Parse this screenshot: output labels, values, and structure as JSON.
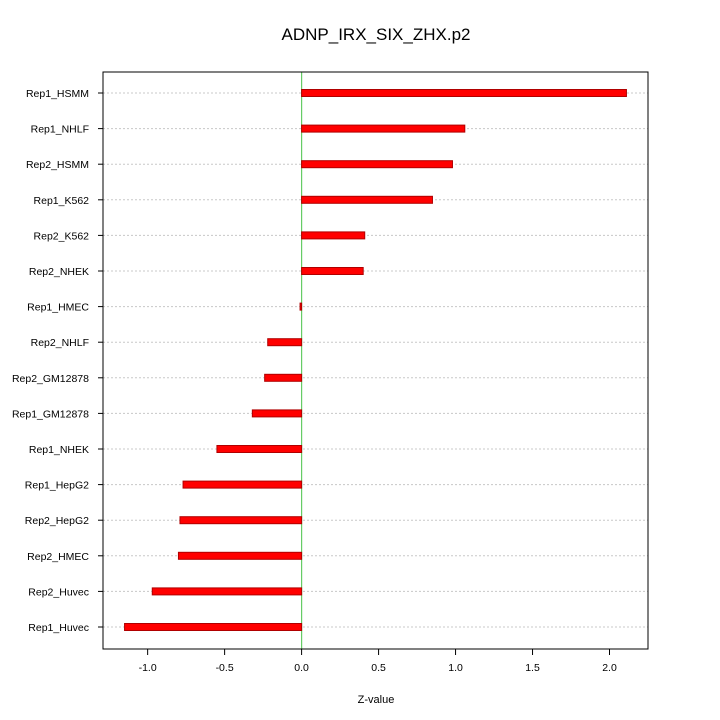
{
  "chart_data": {
    "type": "bar",
    "orientation": "horizontal",
    "title": "ADNP_IRX_SIX_ZHX.p2",
    "xlabel": "Z-value",
    "ylabel": "",
    "xlim": [
      -1.29,
      2.25
    ],
    "xticks": [
      -1.0,
      -0.5,
      0.0,
      0.5,
      1.0,
      1.5,
      2.0
    ],
    "xtick_labels": [
      "-1.0",
      "-0.5",
      "0.0",
      "0.5",
      "1.0",
      "1.5",
      "2.0"
    ],
    "grid": true,
    "zero_line": 0,
    "categories": [
      "Rep1_HSMM",
      "Rep1_NHLF",
      "Rep2_HSMM",
      "Rep1_K562",
      "Rep2_K562",
      "Rep2_NHEK",
      "Rep1_HMEC",
      "Rep2_NHLF",
      "Rep2_GM12878",
      "Rep1_GM12878",
      "Rep1_NHEK",
      "Rep1_HepG2",
      "Rep2_HepG2",
      "Rep2_HMEC",
      "Rep2_Huvec",
      "Rep1_Huvec"
    ],
    "values": [
      2.11,
      1.06,
      0.98,
      0.85,
      0.41,
      0.4,
      -0.01,
      -0.22,
      -0.24,
      -0.32,
      -0.55,
      -0.77,
      -0.79,
      -0.8,
      -0.97,
      -1.15
    ],
    "colors": {
      "bar_fill": "#ff0000",
      "bar_edge": "#b00000",
      "zero_line": "#66cc66",
      "grid": "#c8c8c8",
      "axis": "#000000"
    }
  }
}
